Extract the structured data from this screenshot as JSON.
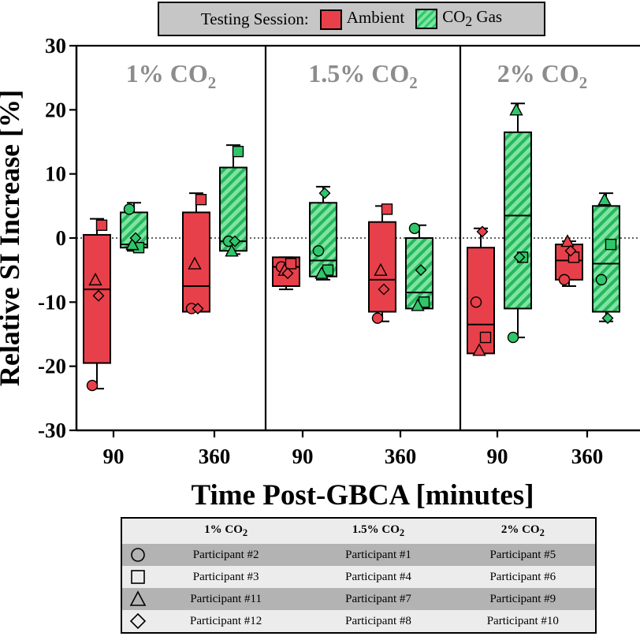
{
  "legend": {
    "title": "Testing Session:",
    "ambient": "Ambient",
    "co2_label": "CO",
    "co2_sub": "2",
    "co2_suffix": " Gas"
  },
  "chart_data": {
    "type": "box",
    "ylabel": "Relative SI Increase [%]",
    "xlabel": "Time Post-GBCA [minutes]",
    "ylim": [
      -30,
      30
    ],
    "yticks": [
      -30,
      -20,
      -10,
      0,
      10,
      20,
      30
    ],
    "reference_line": 0,
    "colors": {
      "Ambient": "#e8404a",
      "CO2 Gas": "#2fc66a"
    },
    "panels": [
      {
        "title_main": "1% CO",
        "title_sub": "2",
        "groups": [
          {
            "time": "90",
            "session": "Ambient",
            "min": -23.5,
            "q1": -19.5,
            "median": -8,
            "q3": 0.5,
            "max": 3,
            "points": [
              {
                "marker": "circle",
                "value": -23
              },
              {
                "marker": "square",
                "value": 2
              },
              {
                "marker": "triangle",
                "value": -6.5
              },
              {
                "marker": "diamond",
                "value": -9
              }
            ]
          },
          {
            "time": "90",
            "session": "CO2 Gas",
            "min": -2,
            "q1": -1.5,
            "median": -1,
            "q3": 4,
            "max": 5.5,
            "points": [
              {
                "marker": "circle",
                "value": 4.5
              },
              {
                "marker": "square",
                "value": -1.5
              },
              {
                "marker": "triangle",
                "value": -1
              },
              {
                "marker": "diamond",
                "value": 0
              }
            ]
          },
          {
            "time": "360",
            "session": "Ambient",
            "min": -11.5,
            "q1": -11.5,
            "median": -7.5,
            "q3": 4,
            "max": 7,
            "points": [
              {
                "marker": "circle",
                "value": -11
              },
              {
                "marker": "square",
                "value": 6
              },
              {
                "marker": "triangle",
                "value": -4
              },
              {
                "marker": "diamond",
                "value": -11
              }
            ]
          },
          {
            "time": "360",
            "session": "CO2 Gas",
            "min": -2.5,
            "q1": -2,
            "median": -0.5,
            "q3": 11,
            "max": 14.5,
            "points": [
              {
                "marker": "circle",
                "value": -0.5
              },
              {
                "marker": "square",
                "value": 13.5
              },
              {
                "marker": "triangle",
                "value": -2
              },
              {
                "marker": "diamond",
                "value": -0.5
              }
            ]
          }
        ]
      },
      {
        "title_main": "1.5% CO",
        "title_sub": "2",
        "groups": [
          {
            "time": "90",
            "session": "Ambient",
            "min": -8,
            "q1": -7.5,
            "median": -4.5,
            "q3": -3,
            "max": -3,
            "points": [
              {
                "marker": "circle",
                "value": -4.5
              },
              {
                "marker": "square",
                "value": -4
              },
              {
                "marker": "triangle",
                "value": -5
              },
              {
                "marker": "diamond",
                "value": -5.5
              }
            ]
          },
          {
            "time": "90",
            "session": "CO2 Gas",
            "min": -6.5,
            "q1": -6,
            "median": -3.5,
            "q3": 5.5,
            "max": 8,
            "points": [
              {
                "marker": "circle",
                "value": -2
              },
              {
                "marker": "square",
                "value": -5
              },
              {
                "marker": "triangle",
                "value": -5.5
              },
              {
                "marker": "diamond",
                "value": 7
              }
            ]
          },
          {
            "time": "360",
            "session": "Ambient",
            "min": -13,
            "q1": -11.5,
            "median": -6.5,
            "q3": 2.5,
            "max": 5,
            "points": [
              {
                "marker": "circle",
                "value": -12.5
              },
              {
                "marker": "square",
                "value": 4.5
              },
              {
                "marker": "triangle",
                "value": -5
              },
              {
                "marker": "diamond",
                "value": -8
              }
            ]
          },
          {
            "time": "360",
            "session": "CO2 Gas",
            "min": -11,
            "q1": -11,
            "median": -8.5,
            "q3": 0,
            "max": 2,
            "points": [
              {
                "marker": "circle",
                "value": 1.5
              },
              {
                "marker": "square",
                "value": -10
              },
              {
                "marker": "triangle",
                "value": -10.5
              },
              {
                "marker": "diamond",
                "value": -5
              }
            ]
          }
        ]
      },
      {
        "title_main": "2% CO",
        "title_sub": "2",
        "groups": [
          {
            "time": "90",
            "session": "Ambient",
            "min": -18,
            "q1": -18,
            "median": -13.5,
            "q3": -1.5,
            "max": 1.5,
            "points": [
              {
                "marker": "circle",
                "value": -10
              },
              {
                "marker": "square",
                "value": -15.5
              },
              {
                "marker": "triangle",
                "value": -17.5
              },
              {
                "marker": "diamond",
                "value": 1
              }
            ]
          },
          {
            "time": "90",
            "session": "CO2 Gas",
            "min": -15.5,
            "q1": -11,
            "median": 3.5,
            "q3": 16.5,
            "max": 21,
            "points": [
              {
                "marker": "circle",
                "value": -15.5
              },
              {
                "marker": "square",
                "value": -3
              },
              {
                "marker": "triangle",
                "value": 20
              },
              {
                "marker": "diamond",
                "value": -3
              }
            ]
          },
          {
            "time": "360",
            "session": "Ambient",
            "min": -7.5,
            "q1": -6.5,
            "median": -3.5,
            "q3": -1,
            "max": -0.5,
            "points": [
              {
                "marker": "circle",
                "value": -6.5
              },
              {
                "marker": "square",
                "value": -3
              },
              {
                "marker": "triangle",
                "value": -0.5
              },
              {
                "marker": "diamond",
                "value": -2
              }
            ]
          },
          {
            "time": "360",
            "session": "CO2 Gas",
            "min": -13,
            "q1": -11.5,
            "median": -4,
            "q3": 5,
            "max": 7,
            "points": [
              {
                "marker": "circle",
                "value": -6.5
              },
              {
                "marker": "square",
                "value": -1
              },
              {
                "marker": "triangle",
                "value": 6
              },
              {
                "marker": "diamond",
                "value": -12.5
              }
            ]
          }
        ]
      }
    ]
  },
  "participant_table": {
    "headers": [
      {
        "main": "1% CO",
        "sub": "2"
      },
      {
        "main": "1.5% CO",
        "sub": "2"
      },
      {
        "main": "2% CO",
        "sub": "2"
      }
    ],
    "rows": [
      {
        "marker": "circle",
        "cells": [
          "Participant #2",
          "Participant #1",
          "Participant #5"
        ]
      },
      {
        "marker": "square",
        "cells": [
          "Participant #3",
          "Participant #4",
          "Participant #6"
        ]
      },
      {
        "marker": "triangle",
        "cells": [
          "Participant #11",
          "Participant #7",
          "Participant #9"
        ]
      },
      {
        "marker": "diamond",
        "cells": [
          "Participant #12",
          "Participant #8",
          "Participant #10"
        ]
      }
    ]
  }
}
